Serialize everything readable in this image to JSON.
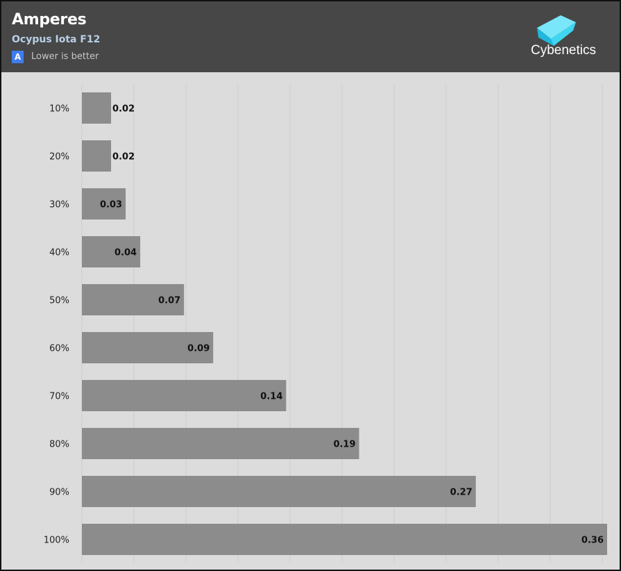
{
  "header": {
    "title": "Amperes",
    "subtitle": "Ocypus Iota F12",
    "badge_letter": "A",
    "note": "Lower is better",
    "logo_text": "Cybenetics",
    "logo_icon": "cyan-cube-icon"
  },
  "colors": {
    "header_bg": "#474747",
    "plot_bg": "#dcdcdc",
    "bar": "#8c8c8c",
    "badge": "#3f7df0",
    "subtitle": "#b9cfe8",
    "logo_cyan": "#3fd6f2"
  },
  "chart_data": {
    "type": "bar",
    "orientation": "horizontal",
    "categories": [
      "10%",
      "20%",
      "30%",
      "40%",
      "50%",
      "60%",
      "70%",
      "80%",
      "90%",
      "100%"
    ],
    "values": [
      0.02,
      0.02,
      0.03,
      0.04,
      0.07,
      0.09,
      0.14,
      0.19,
      0.27,
      0.36
    ],
    "value_labels": [
      "0.02",
      "0.02",
      "0.03",
      "0.04",
      "0.07",
      "0.09",
      "0.14",
      "0.19",
      "0.27",
      "0.36"
    ],
    "title": "Amperes",
    "subtitle": "Ocypus Iota F12",
    "xlim": [
      0,
      0.36
    ],
    "grid": true,
    "legend": "none"
  }
}
